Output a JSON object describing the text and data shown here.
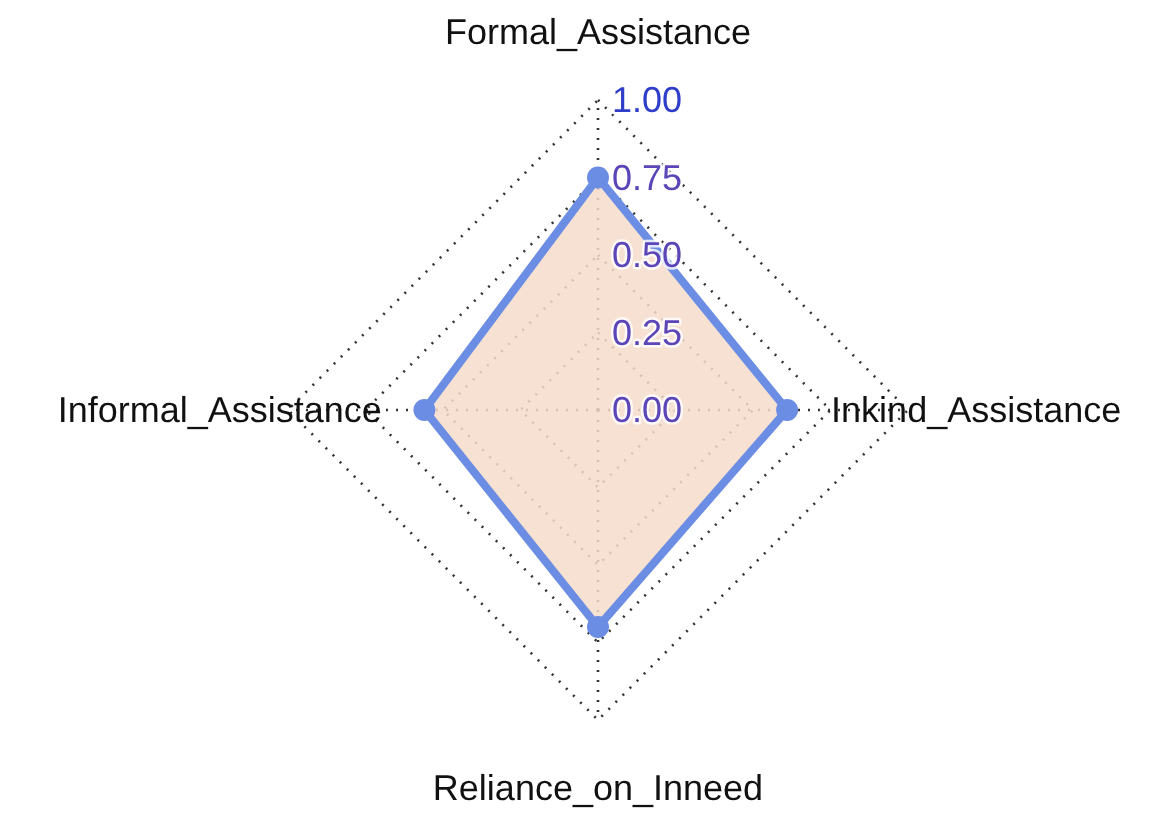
{
  "chart_data": {
    "type": "radar",
    "categories": [
      "Formal_Assistance",
      "Inkind_Assistance",
      "Reliance_on_Inneed",
      "Informal_Assistance"
    ],
    "series": [
      {
        "color": "#6b8de3",
        "values": [
          0.75,
          0.61,
          0.7,
          0.56
        ]
      }
    ],
    "ylim": [
      0,
      1
    ],
    "yticks": [
      {
        "value": 0,
        "label": "0.00"
      },
      {
        "value": 0.25,
        "label": "0.25"
      },
      {
        "value": 0.5,
        "label": "0.50"
      },
      {
        "value": 0.75,
        "label": "0.75"
      },
      {
        "value": 1,
        "label": "1.00"
      }
    ],
    "grid": true,
    "marker": "circle"
  }
}
